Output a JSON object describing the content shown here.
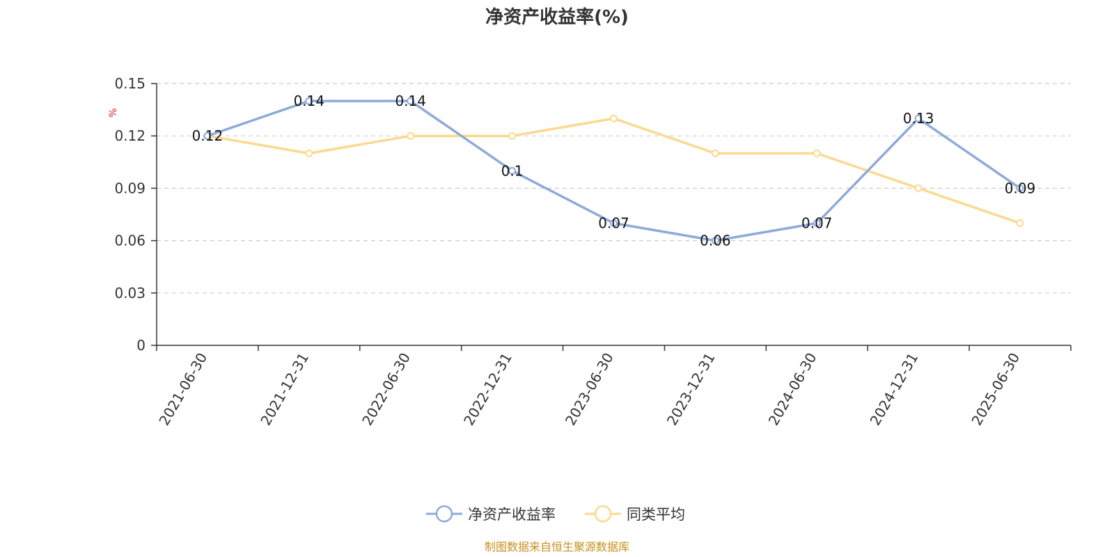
{
  "chart_data": {
    "type": "line",
    "title": "净资产收益率(%)",
    "ylabel": "%",
    "xlabel": "",
    "categories": [
      "2021-06-30",
      "2021-12-31",
      "2022-06-30",
      "2022-12-31",
      "2023-06-30",
      "2023-12-31",
      "2024-06-30",
      "2024-12-31",
      "2025-06-30"
    ],
    "ylim": [
      0,
      0.15
    ],
    "yticks": [
      "0",
      "0.03",
      "0.06",
      "0.09",
      "0.12",
      "0.15"
    ],
    "grid": true,
    "legend_position": "bottom",
    "series": [
      {
        "name": "净资产收益率",
        "values": [
          0.12,
          0.14,
          0.14,
          0.1,
          0.07,
          0.06,
          0.07,
          0.13,
          0.09
        ],
        "labels": [
          "0.12",
          "0.14",
          "0.14",
          "0.1",
          "0.07",
          "0.06",
          "0.07",
          "0.13",
          "0.09"
        ],
        "color": "#8eaad8",
        "show_labels": true
      },
      {
        "name": "同类平均",
        "values": [
          0.12,
          0.11,
          0.12,
          0.12,
          0.13,
          0.11,
          0.11,
          0.09,
          0.07
        ],
        "color": "#fbd98f",
        "show_labels": false
      }
    ]
  },
  "colors": {
    "axis": "#333333",
    "grid": "#cccccc",
    "unit": "#e02020",
    "source": "#c8901c"
  },
  "source": "制图数据来自恒生聚源数据库"
}
